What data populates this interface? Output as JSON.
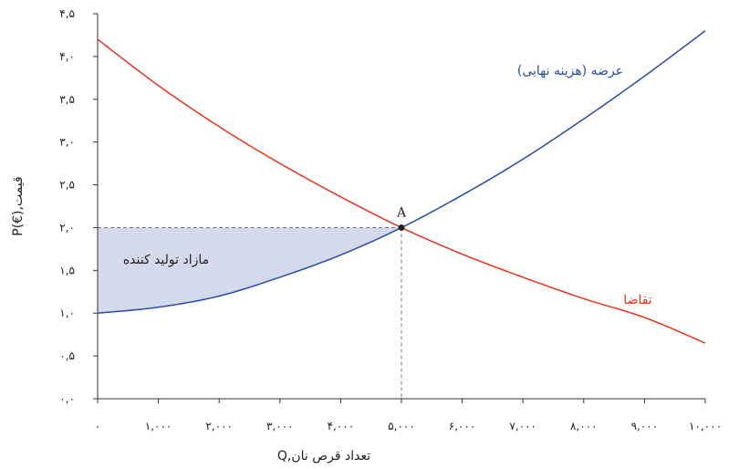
{
  "chart_data": {
    "type": "line",
    "title": "",
    "xlabel": "Q,تعداد قرص نان",
    "ylabel": "P(€),قیمت",
    "xlim": [
      0,
      10000
    ],
    "ylim": [
      0,
      4.5
    ],
    "x_ticks": [
      0,
      1000,
      2000,
      3000,
      4000,
      5000,
      6000,
      7000,
      8000,
      9000,
      10000
    ],
    "x_tick_labels": [
      "۰",
      "۱,۰۰۰",
      "۲,۰۰۰",
      "۳,۰۰۰",
      "۴,۰۰۰",
      "۵,۰۰۰",
      "۶,۰۰۰",
      "۷,۰۰۰",
      "۸,۰۰۰",
      "۹,۰۰۰",
      "۱۰,۰۰۰"
    ],
    "y_ticks": [
      0,
      0.5,
      1.0,
      1.5,
      2.0,
      2.5,
      3.0,
      3.5,
      4.0,
      4.5
    ],
    "y_tick_labels": [
      "۰,۰",
      "۰,۵",
      "۱,۰",
      "۱,۵",
      "۲,۰",
      "۲,۵",
      "۳,۰",
      "۳,۵",
      "۴,۰",
      "۴,۵"
    ],
    "grid": false,
    "series": [
      {
        "name": "عرضه (هزینه نهایی)",
        "color": "#2b4ba0",
        "x": [
          0,
          1000,
          2000,
          3000,
          4000,
          5000,
          6000,
          7000,
          8000,
          9000,
          10000
        ],
        "y": [
          1.0,
          1.07,
          1.2,
          1.42,
          1.68,
          2.0,
          2.38,
          2.8,
          3.27,
          3.77,
          4.3
        ]
      },
      {
        "name": "تقاضا",
        "color": "#e8321e",
        "x": [
          0,
          1000,
          2000,
          3000,
          4000,
          5000,
          6000,
          7000,
          8000,
          9000,
          10000
        ],
        "y": [
          4.2,
          3.66,
          3.18,
          2.75,
          2.36,
          2.0,
          1.69,
          1.42,
          1.17,
          0.95,
          0.65
        ]
      }
    ],
    "equilibrium": {
      "label": "A",
      "x": 5000,
      "y": 2.0
    },
    "shaded_region": {
      "label": "مازاد تولید کننده",
      "color": "#d4d9ec",
      "price": 2.0,
      "x_from": 0,
      "x_to": 5000
    }
  }
}
